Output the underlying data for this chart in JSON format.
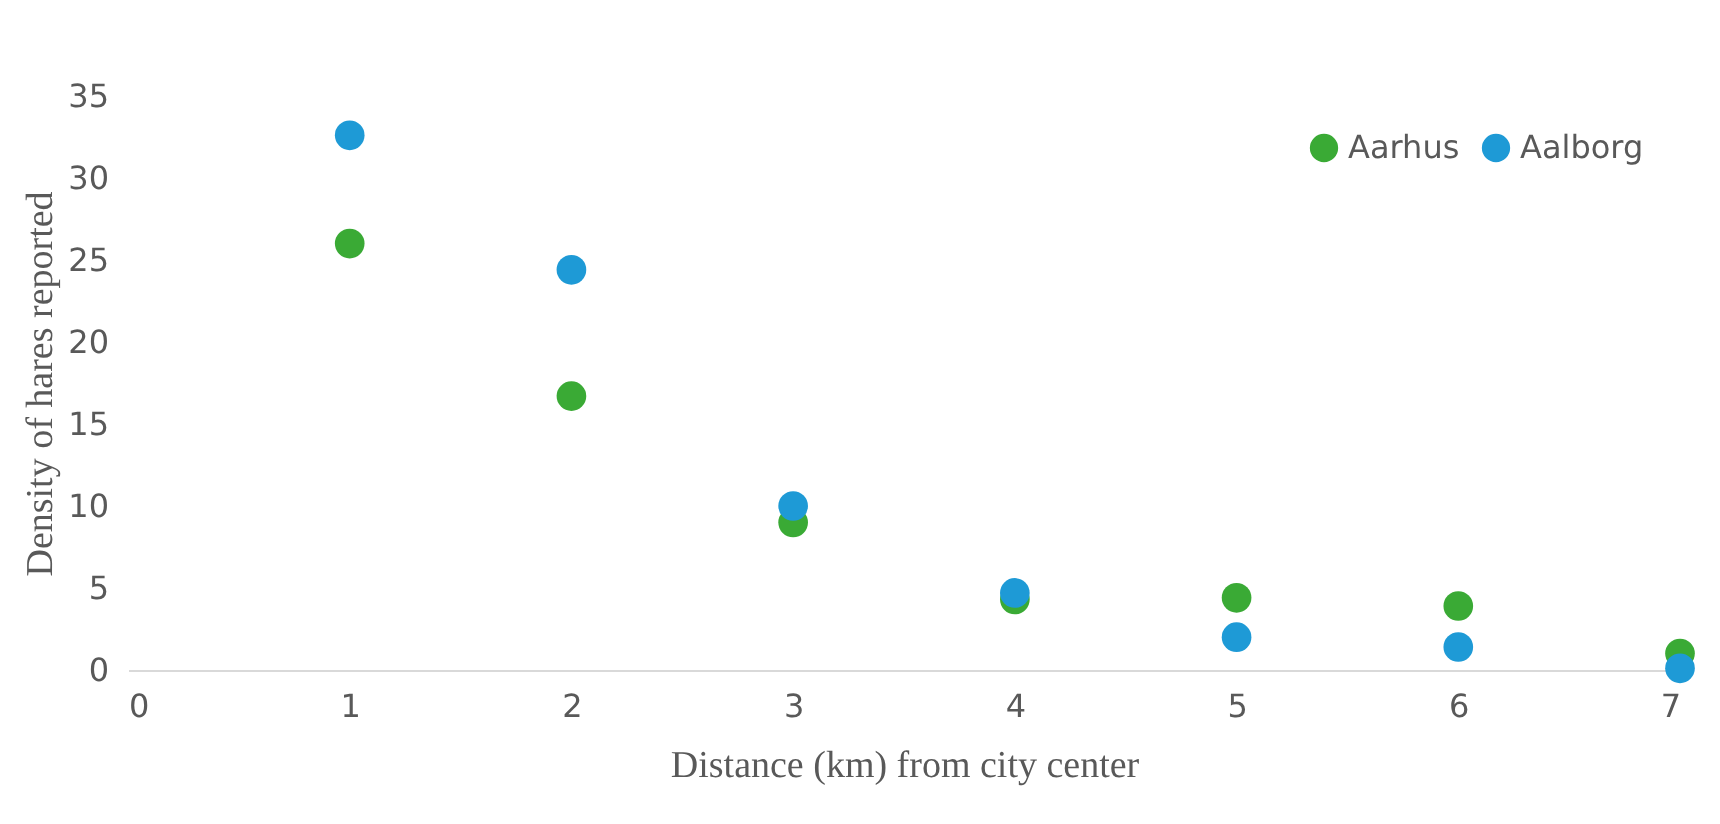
{
  "chart_data": {
    "type": "scatter",
    "xlabel": "Distance (km) from city center",
    "ylabel": "Density of hares reported",
    "x": [
      1,
      2,
      3,
      4,
      5,
      6,
      7
    ],
    "series": [
      {
        "name": "Aarhus",
        "color": "#3aaa35",
        "values": [
          26.0,
          16.7,
          9.0,
          4.3,
          4.4,
          3.9,
          1.0
        ]
      },
      {
        "name": "Aalborg",
        "color": "#1e9ad6",
        "values": [
          32.6,
          24.4,
          10.0,
          4.7,
          2.0,
          1.4,
          0.1
        ]
      }
    ],
    "xlim": [
      0,
      7
    ],
    "xticks": [
      0,
      1,
      2,
      3,
      4,
      5,
      6,
      7
    ],
    "ylim": [
      0,
      35
    ],
    "yticks": [
      0,
      5,
      10,
      15,
      20,
      25,
      30,
      35
    ],
    "grid": false,
    "legend": "top right",
    "marker": "circle"
  }
}
